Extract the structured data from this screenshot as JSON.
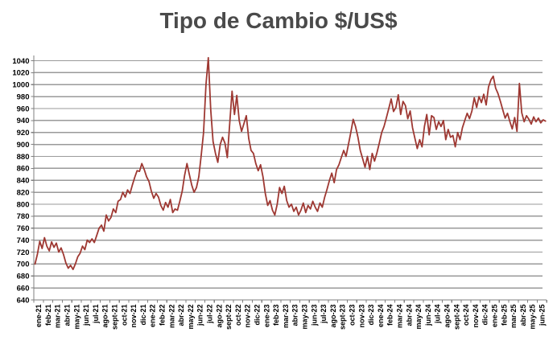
{
  "chart_data": {
    "type": "line",
    "title": "Tipo de Cambio $/US$",
    "x_labels": [
      "ene-21",
      "feb-21",
      "mar-21",
      "abr-21",
      "may-21",
      "jun-21",
      "jul-21",
      "ago-21",
      "sept-21",
      "oct-21",
      "nov-21",
      "dic-21",
      "ene-22",
      "feb-22",
      "mar-22",
      "abr-22",
      "may-22",
      "jun-22",
      "jul-22",
      "ago-22",
      "sept-22",
      "oct-22",
      "nov-22",
      "dic-22",
      "ene-23",
      "feb-23",
      "mar-23",
      "abr-23",
      "may-23",
      "jun-23",
      "jul-23",
      "ago-23",
      "sept-23",
      "oct-23",
      "nov-23",
      "dic-23",
      "ene-24",
      "feb-24",
      "mar-24",
      "abr-24",
      "may-24",
      "jun-24",
      "jul-24",
      "ago-24",
      "sept-24",
      "oct-24",
      "nov-24",
      "dic-24",
      "ene-25",
      "feb-25",
      "mar-25",
      "abr-25",
      "may-25",
      "jun-25"
    ],
    "y_tick_labels": [
      640,
      660,
      680,
      700,
      720,
      740,
      760,
      780,
      800,
      820,
      840,
      860,
      880,
      900,
      920,
      940,
      960,
      980,
      1000,
      1020,
      1040
    ],
    "ylim": [
      640,
      1040
    ],
    "points_per_month": 4,
    "values": [
      700,
      716,
      738,
      726,
      744,
      730,
      722,
      737,
      728,
      735,
      720,
      727,
      716,
      702,
      693,
      698,
      691,
      700,
      712,
      718,
      730,
      724,
      740,
      736,
      742,
      736,
      748,
      760,
      765,
      755,
      782,
      772,
      778,
      792,
      786,
      805,
      808,
      820,
      812,
      824,
      818,
      832,
      845,
      856,
      855,
      868,
      858,
      846,
      838,
      822,
      810,
      818,
      812,
      798,
      790,
      803,
      795,
      808,
      786,
      792,
      790,
      805,
      822,
      848,
      868,
      850,
      832,
      820,
      828,
      846,
      882,
      920,
      1000,
      1045,
      958,
      905,
      885,
      870,
      900,
      912,
      902,
      878,
      935,
      989,
      950,
      982,
      940,
      922,
      935,
      948,
      910,
      890,
      885,
      868,
      856,
      866,
      846,
      818,
      798,
      806,
      790,
      782,
      800,
      828,
      818,
      830,
      806,
      795,
      800,
      788,
      795,
      782,
      790,
      802,
      786,
      798,
      792,
      805,
      795,
      788,
      802,
      795,
      812,
      825,
      840,
      852,
      836,
      858,
      866,
      878,
      890,
      880,
      900,
      920,
      942,
      930,
      912,
      890,
      876,
      862,
      880,
      858,
      885,
      872,
      886,
      902,
      920,
      930,
      945,
      960,
      976,
      955,
      962,
      983,
      950,
      972,
      965,
      943,
      956,
      928,
      910,
      893,
      908,
      896,
      930,
      950,
      916,
      948,
      945,
      925,
      938,
      930,
      940,
      908,
      925,
      912,
      915,
      896,
      920,
      908,
      928,
      940,
      952,
      943,
      956,
      978,
      962,
      980,
      970,
      984,
      966,
      996,
      1008,
      1014,
      994,
      985,
      972,
      958,
      944,
      952,
      938,
      926,
      945,
      922,
      1002,
      953,
      938,
      948,
      942,
      934,
      946,
      938,
      944,
      936,
      941,
      939
    ],
    "line_color": "#9E3832",
    "grid_color": "#9a9a9a",
    "axis_color": "#7f7f7f",
    "label_color": "#000000",
    "title_color": "#4a4a4a"
  }
}
